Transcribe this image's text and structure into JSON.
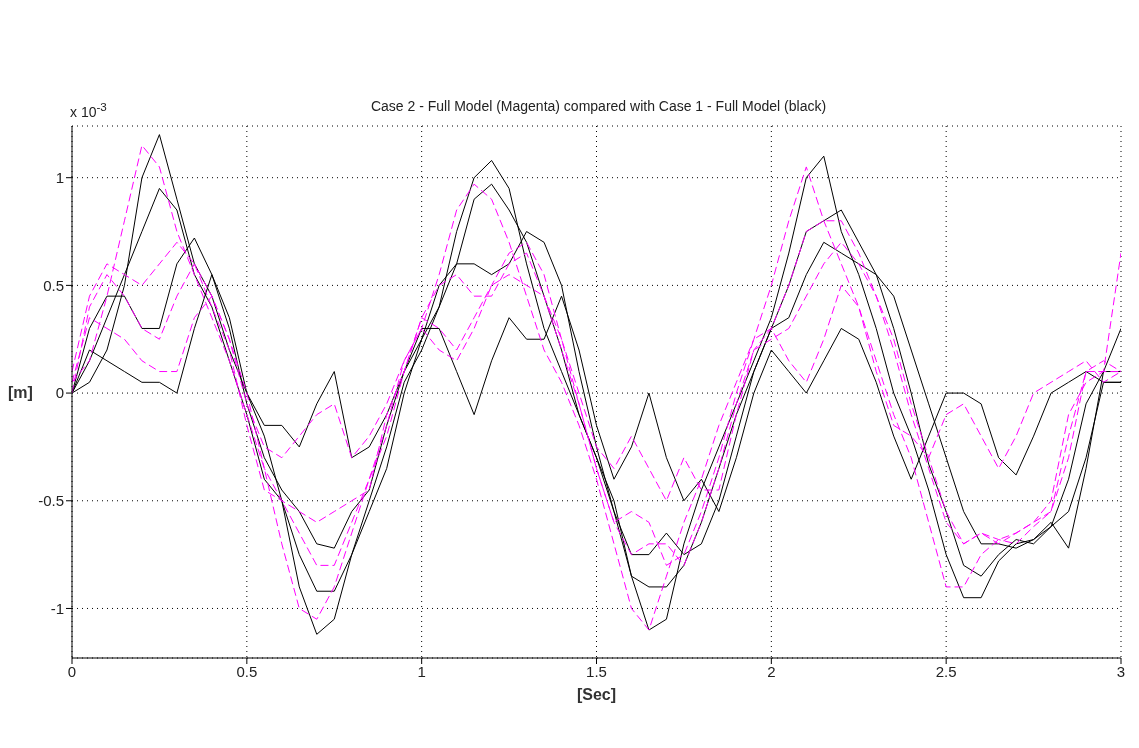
{
  "chart_data": {
    "type": "line",
    "title": "Case 2 - Full Model (Magenta) compared with Case 1 - Full Model (black)",
    "xlabel": "[Sec]",
    "ylabel": "[m]",
    "annotations": [
      "x 10$^{-3}$"
    ],
    "x": [
      0,
      0.05,
      0.1,
      0.15,
      0.2,
      0.25,
      0.3,
      0.35,
      0.4,
      0.45,
      0.5,
      0.55,
      0.6,
      0.65,
      0.7,
      0.75,
      0.8,
      0.85,
      0.9,
      0.95,
      1,
      1.05,
      1.1,
      1.15,
      1.2,
      1.25,
      1.3,
      1.35,
      1.4,
      1.45,
      1.5,
      1.55,
      1.6,
      1.65,
      1.7,
      1.75,
      1.8,
      1.85,
      1.9,
      1.95,
      2,
      2.05,
      2.1,
      2.15,
      2.2,
      2.25,
      2.3,
      2.35,
      2.4,
      2.45,
      2.5,
      2.55,
      2.6,
      2.65,
      2.7,
      2.75,
      2.8,
      2.85,
      2.9,
      2.95,
      3
    ],
    "series": [
      {
        "color": "#000000",
        "line_style": "solid",
        "values": [
          0,
          0.05,
          0.2,
          0.5,
          1.0,
          1.2,
          0.9,
          0.6,
          0.45,
          0.2,
          0,
          -0.2,
          -0.5,
          -0.9,
          -1.12,
          -1.05,
          -0.75,
          -0.5,
          -0.25,
          0.05,
          0.2,
          0.4,
          0.75,
          1.0,
          1.08,
          0.95,
          0.6,
          0.3,
          0.1,
          -0.1,
          -0.3,
          -0.5,
          -0.85,
          -1.1,
          -1.05,
          -0.7,
          -0.45,
          -0.25,
          -0.05,
          0.15,
          0.35,
          0.65,
          1.0,
          1.1,
          0.75,
          0.55,
          0.3,
          0.0,
          -0.2,
          -0.45,
          -0.75,
          -0.95,
          -0.95,
          -0.78,
          -0.7,
          -0.68,
          -0.62,
          -0.55,
          -0.3,
          0.05,
          0.05
        ]
      },
      {
        "color": "#000000",
        "line_style": "solid",
        "values": [
          0,
          0.15,
          0.35,
          0.55,
          0.75,
          0.95,
          0.85,
          0.55,
          0.4,
          0.15,
          -0.1,
          -0.4,
          -0.5,
          -0.75,
          -0.92,
          -0.92,
          -0.75,
          -0.55,
          -0.35,
          0.0,
          0.25,
          0.4,
          0.6,
          0.9,
          0.97,
          0.85,
          0.7,
          0.45,
          0.2,
          -0.1,
          -0.3,
          -0.55,
          -0.85,
          -0.9,
          -0.9,
          -0.8,
          -0.6,
          -0.35,
          -0.1,
          0.1,
          0.3,
          0.5,
          0.75,
          0.8,
          0.85,
          0.7,
          0.55,
          0.3,
          0.0,
          -0.33,
          -0.55,
          -0.8,
          -0.85,
          -0.75,
          -0.68,
          -0.7,
          -0.62,
          -0.4,
          -0.05,
          0.1,
          0.3
        ]
      },
      {
        "color": "#000000",
        "line_style": "solid",
        "values": [
          0,
          0.3,
          0.45,
          0.45,
          0.3,
          0.3,
          0.6,
          0.72,
          0.55,
          0.3,
          -0.05,
          -0.3,
          -0.45,
          -0.55,
          -0.7,
          -0.72,
          -0.55,
          -0.45,
          -0.15,
          0.1,
          0.25,
          0.5,
          0.6,
          0.6,
          0.55,
          0.6,
          0.75,
          0.7,
          0.5,
          0.1,
          -0.25,
          -0.55,
          -0.75,
          -0.75,
          -0.65,
          -0.75,
          -0.7,
          -0.5,
          -0.2,
          0.1,
          0.3,
          0.35,
          0.55,
          0.7,
          0.65,
          0.6,
          0.55,
          0.45,
          0.2,
          -0.05,
          -0.3,
          -0.55,
          -0.7,
          -0.7,
          -0.72,
          -0.68,
          -0.6,
          -0.72,
          -0.35,
          0.1,
          0.1
        ]
      },
      {
        "color": "#000000",
        "line_style": "solid",
        "values": [
          0,
          0.2,
          0.15,
          0.1,
          0.05,
          0.05,
          0.0,
          0.3,
          0.55,
          0.35,
          0.0,
          -0.15,
          -0.15,
          -0.25,
          -0.05,
          0.1,
          -0.3,
          -0.25,
          -0.1,
          0.1,
          0.3,
          0.3,
          0.1,
          -0.1,
          0.15,
          0.35,
          0.25,
          0.25,
          0.45,
          0.2,
          -0.15,
          -0.4,
          -0.25,
          0.0,
          -0.3,
          -0.5,
          -0.4,
          -0.55,
          -0.3,
          0.0,
          0.2,
          0.1,
          0.0,
          0.15,
          0.3,
          0.25,
          0.05,
          -0.2,
          -0.4,
          -0.2,
          0.0,
          0.0,
          -0.05,
          -0.3,
          -0.38,
          -0.2,
          0.0,
          0.05,
          0.1,
          0.05,
          0.05
        ]
      },
      {
        "color": "#ff00ff",
        "line_style": "dashed",
        "values": [
          0.05,
          0.15,
          0.45,
          0.8,
          1.15,
          1.05,
          0.75,
          0.55,
          0.35,
          0.15,
          -0.1,
          -0.35,
          -0.7,
          -1.0,
          -1.05,
          -0.9,
          -0.65,
          -0.4,
          -0.15,
          0.15,
          0.3,
          0.55,
          0.85,
          0.97,
          0.9,
          0.7,
          0.45,
          0.2,
          0.05,
          -0.15,
          -0.4,
          -0.7,
          -1.0,
          -1.1,
          -0.85,
          -0.6,
          -0.4,
          -0.15,
          0.05,
          0.25,
          0.5,
          0.8,
          1.05,
          0.8,
          0.6,
          0.4,
          0.15,
          -0.1,
          -0.3,
          -0.6,
          -0.9,
          -0.9,
          -0.75,
          -0.68,
          -0.65,
          -0.6,
          -0.5,
          -0.1,
          0.05,
          0.1,
          0.65
        ]
      },
      {
        "color": "#ff00ff",
        "line_style": "dashed",
        "values": [
          0.1,
          0.45,
          0.6,
          0.55,
          0.5,
          0.6,
          0.7,
          0.6,
          0.4,
          0.2,
          -0.15,
          -0.45,
          -0.5,
          -0.55,
          -0.6,
          -0.55,
          -0.5,
          -0.45,
          -0.1,
          0.1,
          0.35,
          0.5,
          0.55,
          0.45,
          0.45,
          0.6,
          0.65,
          0.45,
          0.2,
          -0.05,
          -0.35,
          -0.6,
          -0.55,
          -0.6,
          -0.8,
          -0.75,
          -0.55,
          -0.3,
          0.0,
          0.25,
          0.3,
          0.5,
          0.75,
          0.8,
          0.8,
          0.65,
          0.45,
          0.2,
          -0.1,
          -0.35,
          -0.6,
          -0.7,
          -0.65,
          -0.68,
          -0.7,
          -0.62,
          -0.55,
          -0.2,
          0.1,
          0.1,
          0.1
        ]
      },
      {
        "color": "#ff00ff",
        "line_style": "dashed",
        "values": [
          0.05,
          0.35,
          0.3,
          0.25,
          0.15,
          0.1,
          0.1,
          0.35,
          0.45,
          0.25,
          -0.05,
          -0.25,
          -0.3,
          -0.2,
          -0.1,
          -0.05,
          -0.3,
          -0.2,
          -0.05,
          0.15,
          0.3,
          0.2,
          0.15,
          0.3,
          0.5,
          0.55,
          0.5,
          0.45,
          0.25,
          0.0,
          -0.25,
          -0.35,
          -0.2,
          -0.35,
          -0.5,
          -0.3,
          -0.45,
          -0.45,
          -0.1,
          0.2,
          0.3,
          0.15,
          0.05,
          0.25,
          0.5,
          0.4,
          0.1,
          -0.15,
          -0.2,
          -0.3,
          -0.1,
          -0.05,
          -0.2,
          -0.35,
          -0.2,
          0.0,
          0.05,
          0.1,
          0.15,
          0.05,
          0.1
        ]
      },
      {
        "color": "#ff00ff",
        "line_style": "dashed",
        "values": [
          0.0,
          0.4,
          0.55,
          0.45,
          0.3,
          0.25,
          0.45,
          0.6,
          0.45,
          0.25,
          0.0,
          -0.35,
          -0.5,
          -0.65,
          -0.8,
          -0.8,
          -0.6,
          -0.4,
          -0.2,
          0.1,
          0.35,
          0.3,
          0.2,
          0.35,
          0.5,
          0.65,
          0.7,
          0.55,
          0.25,
          -0.05,
          -0.35,
          -0.6,
          -0.75,
          -0.7,
          -0.7,
          -0.8,
          -0.6,
          -0.35,
          -0.05,
          0.2,
          0.25,
          0.3,
          0.45,
          0.6,
          0.7,
          0.6,
          0.45,
          0.25,
          -0.05,
          -0.3,
          -0.55,
          -0.7,
          -0.65,
          -0.7,
          -0.65,
          -0.6,
          -0.55,
          -0.3,
          0.1,
          0.15,
          0.1
        ]
      }
    ],
    "xlim": [
      0,
      3
    ],
    "xticks": [
      0,
      0.5,
      1,
      1.5,
      2,
      2.5,
      3
    ],
    "ylim": [
      -1.23,
      1.24
    ],
    "yticks": [
      -1,
      -0.5,
      0,
      0.5,
      1
    ],
    "grid": true,
    "marker": "none"
  }
}
